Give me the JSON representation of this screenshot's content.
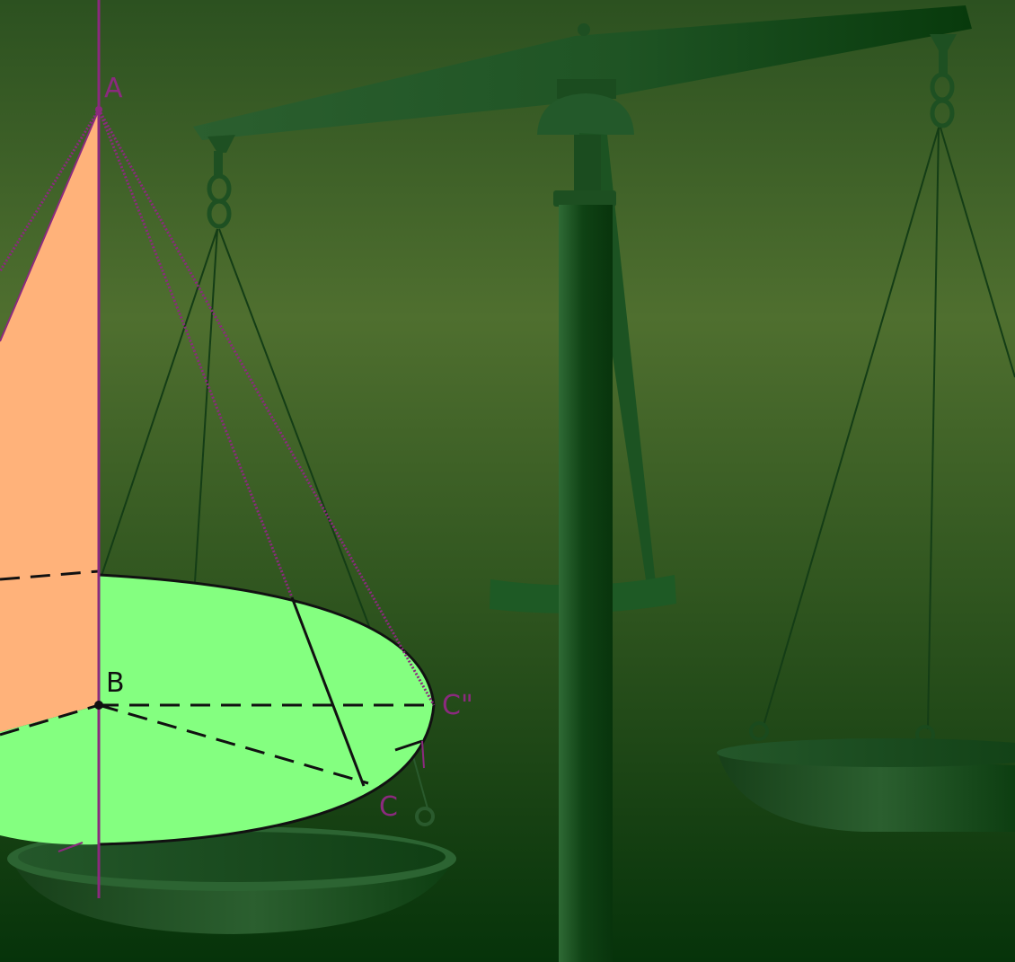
{
  "scene": {
    "type": "balance-scale-with-cone-diagram",
    "colors": {
      "background_top": "#2c5120",
      "background_mid": "#4f6f2f",
      "background_bottom": "#06330a",
      "scale_dark": "#0d3f12",
      "scale_light": "#2f6a35",
      "cone_fill": "#ffb27a",
      "base_fill": "#84ff80",
      "construction_lines": "#8b2a7e",
      "edge_lines": "#111111"
    }
  },
  "diagram": {
    "labels": {
      "apex": "A",
      "center": "B",
      "right_point": "C\"",
      "lower_point": "C"
    }
  },
  "icons": {
    "scale": "balance-scale-icon",
    "cone": "cone-icon"
  }
}
